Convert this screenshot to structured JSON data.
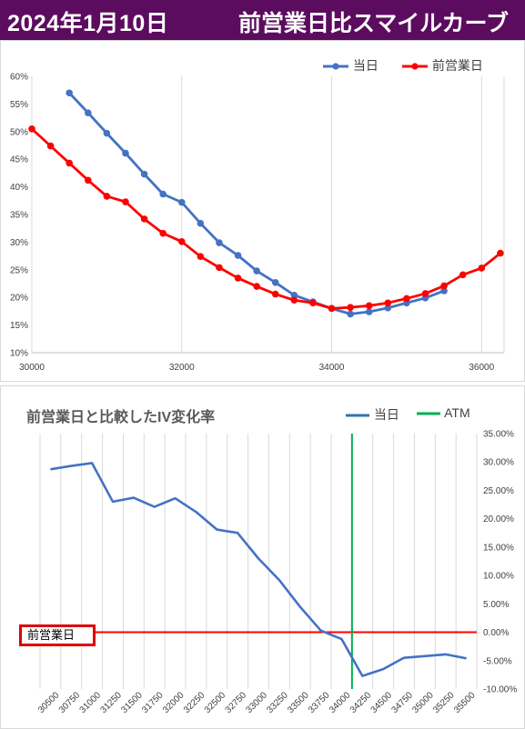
{
  "header": {
    "date": "2024年1月10日",
    "title": "前営業日比スマイルカーブ"
  },
  "colors": {
    "header_bg": "#5b0c5e",
    "today": "#4472c4",
    "prev": "#ff0000",
    "atm": "#00b050",
    "change": "#4472c4",
    "baseline": "#ff0000"
  },
  "chart_data": [
    {
      "type": "line",
      "title": "",
      "xlabel": "",
      "ylabel": "",
      "xlim": [
        30000,
        36300
      ],
      "ylim": [
        0.1,
        0.6
      ],
      "x_ticks": [
        30000,
        32000,
        34000,
        36000
      ],
      "x_tick_labels": [
        "30000",
        "32000",
        "34000",
        "36000"
      ],
      "y_ticks": [
        0.1,
        0.15,
        0.2,
        0.25,
        0.3,
        0.35,
        0.4,
        0.45,
        0.5,
        0.55,
        0.6
      ],
      "y_tick_labels": [
        "10%",
        "15%",
        "20%",
        "25%",
        "30%",
        "35%",
        "40%",
        "45%",
        "50%",
        "55%",
        "60%"
      ],
      "grid": "vertical",
      "legend_position": "top-right",
      "series": [
        {
          "name": "当日",
          "color": "#4472c4",
          "x": [
            30500,
            30750,
            31000,
            31250,
            31500,
            31750,
            32000,
            32250,
            32500,
            32750,
            33000,
            33250,
            33500,
            33750,
            34000,
            34250,
            34500,
            34750,
            35000,
            35250,
            35500
          ],
          "y": [
            0.57,
            0.534,
            0.497,
            0.461,
            0.423,
            0.387,
            0.372,
            0.334,
            0.299,
            0.276,
            0.248,
            0.227,
            0.204,
            0.192,
            0.18,
            0.17,
            0.174,
            0.181,
            0.19,
            0.199,
            0.212
          ]
        },
        {
          "name": "前営業日",
          "color": "#ff0000",
          "x": [
            30000,
            30250,
            30500,
            30750,
            31000,
            31250,
            31500,
            31750,
            32000,
            32250,
            32500,
            32750,
            33000,
            33250,
            33500,
            33750,
            34000,
            34250,
            34500,
            34750,
            35000,
            35250,
            35500,
            35750,
            36000,
            36250
          ],
          "y": [
            0.505,
            0.474,
            0.443,
            0.412,
            0.383,
            0.373,
            0.342,
            0.316,
            0.301,
            0.274,
            0.254,
            0.235,
            0.22,
            0.206,
            0.195,
            0.19,
            0.18,
            0.182,
            0.185,
            0.19,
            0.198,
            0.207,
            0.221,
            0.241,
            0.253,
            0.28
          ]
        }
      ]
    },
    {
      "type": "line",
      "title": "前営業日と比較したIV変化率",
      "xlabel": "",
      "ylabel": "",
      "categories": [
        "30500",
        "30750",
        "31000",
        "31250",
        "31500",
        "31750",
        "32000",
        "32250",
        "32500",
        "32750",
        "33000",
        "33250",
        "33500",
        "33750",
        "34000",
        "34250",
        "34500",
        "34750",
        "35000",
        "35250",
        "35500"
      ],
      "ylim": [
        -0.1,
        0.35
      ],
      "y_ticks": [
        0.35,
        0.3,
        0.25,
        0.2,
        0.15,
        0.1,
        0.05,
        0.0,
        -0.05,
        -0.1
      ],
      "y_tick_labels": [
        "35.00%",
        "30.00%",
        "25.00%",
        "20.00%",
        "15.00%",
        "10.00%",
        "5.00%",
        "0.00%",
        "-5.00%",
        "-10.00%"
      ],
      "y_axis_side": "right",
      "grid": "vertical",
      "legend_position": "top-right",
      "baseline_label": "前営業日",
      "atm": 34125,
      "series": [
        {
          "name": "当日",
          "color": "#4472c4",
          "values": [
            0.287,
            0.293,
            0.298,
            0.23,
            0.237,
            0.221,
            0.236,
            0.212,
            0.181,
            0.175,
            0.13,
            0.092,
            0.045,
            0.003,
            -0.012,
            -0.077,
            -0.065,
            -0.045,
            -0.042,
            -0.039,
            -0.046
          ]
        },
        {
          "name": "ATM",
          "color": "#00b050"
        }
      ]
    }
  ]
}
